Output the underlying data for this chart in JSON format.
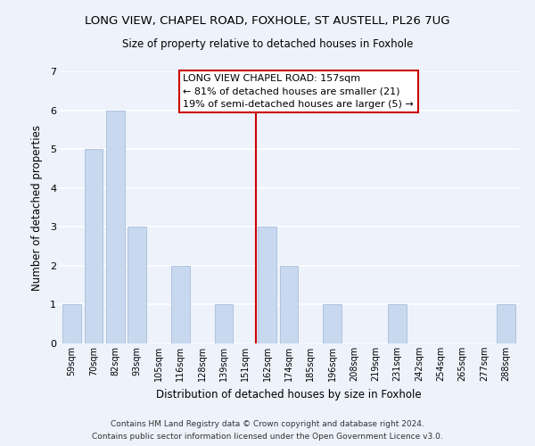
{
  "title": "LONG VIEW, CHAPEL ROAD, FOXHOLE, ST AUSTELL, PL26 7UG",
  "subtitle": "Size of property relative to detached houses in Foxhole",
  "xlabel": "Distribution of detached houses by size in Foxhole",
  "ylabel": "Number of detached properties",
  "bar_labels": [
    "59sqm",
    "70sqm",
    "82sqm",
    "93sqm",
    "105sqm",
    "116sqm",
    "128sqm",
    "139sqm",
    "151sqm",
    "162sqm",
    "174sqm",
    "185sqm",
    "196sqm",
    "208sqm",
    "219sqm",
    "231sqm",
    "242sqm",
    "254sqm",
    "265sqm",
    "277sqm",
    "288sqm"
  ],
  "bar_values": [
    1,
    5,
    6,
    3,
    0,
    2,
    0,
    1,
    0,
    3,
    2,
    0,
    1,
    0,
    0,
    1,
    0,
    0,
    0,
    0,
    1
  ],
  "bar_color": "#c8d8ee",
  "bar_edge_color": "#b0c4de",
  "highlight_line_color": "#cc0000",
  "ylim": [
    0,
    7
  ],
  "yticks": [
    0,
    1,
    2,
    3,
    4,
    5,
    6,
    7
  ],
  "annotation_box_text_line1": "LONG VIEW CHAPEL ROAD: 157sqm",
  "annotation_box_text_line2": "← 81% of detached houses are smaller (21)",
  "annotation_box_text_line3": "19% of semi-detached houses are larger (5) →",
  "annotation_box_color": "#cc0000",
  "annotation_box_facecolor": "#ffffff",
  "footer_line1": "Contains HM Land Registry data © Crown copyright and database right 2024.",
  "footer_line2": "Contains public sector information licensed under the Open Government Licence v3.0.",
  "background_color": "#edf2fb",
  "grid_color": "#ffffff",
  "title_fontsize": 9.5,
  "subtitle_fontsize": 8.5,
  "xlabel_fontsize": 8.5,
  "ylabel_fontsize": 8.5,
  "tick_fontsize": 7.0,
  "annotation_fontsize": 8.0,
  "footer_fontsize": 6.5
}
